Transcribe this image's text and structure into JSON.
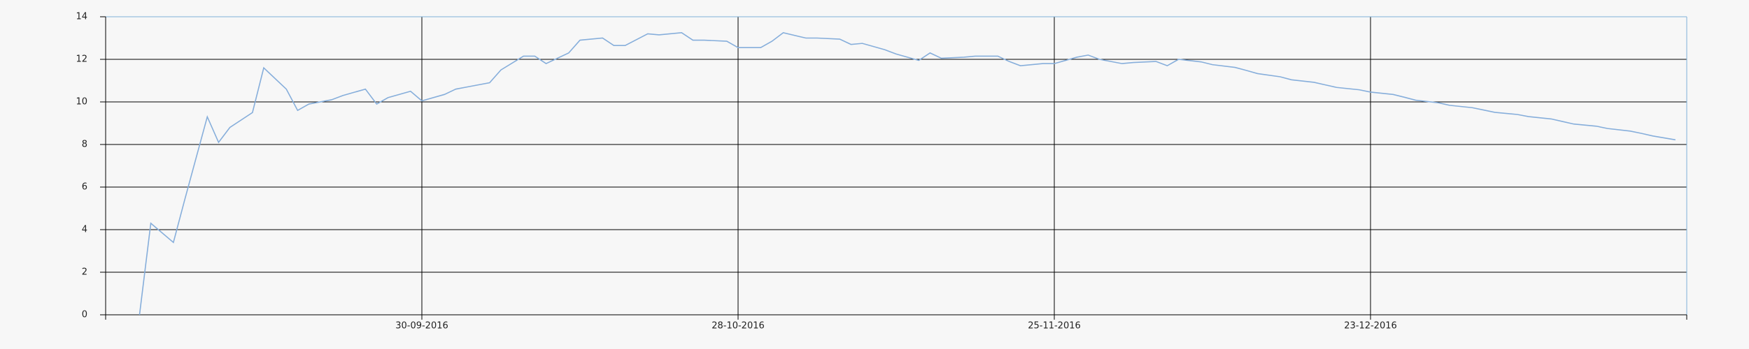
{
  "chart_data": {
    "type": "line",
    "x": [
      "2016-09-05",
      "2016-09-06",
      "2016-09-08",
      "2016-09-09",
      "2016-09-11",
      "2016-09-12",
      "2016-09-13",
      "2016-09-15",
      "2016-09-16",
      "2016-09-18",
      "2016-09-19",
      "2016-09-20",
      "2016-09-22",
      "2016-09-23",
      "2016-09-25",
      "2016-09-26",
      "2016-09-27",
      "2016-09-29",
      "2016-09-30",
      "2016-10-02",
      "2016-10-03",
      "2016-10-04",
      "2016-10-06",
      "2016-10-07",
      "2016-10-09",
      "2016-10-10",
      "2016-10-11",
      "2016-10-13",
      "2016-10-14",
      "2016-10-16",
      "2016-10-17",
      "2016-10-18",
      "2016-10-20",
      "2016-10-21",
      "2016-10-23",
      "2016-10-24",
      "2016-10-25",
      "2016-10-27",
      "2016-10-28",
      "2016-10-30",
      "2016-10-31",
      "2016-11-01",
      "2016-11-03",
      "2016-11-04",
      "2016-11-06",
      "2016-11-07",
      "2016-11-08",
      "2016-11-10",
      "2016-11-11",
      "2016-11-13",
      "2016-11-14",
      "2016-11-15",
      "2016-11-17",
      "2016-11-18",
      "2016-11-20",
      "2016-11-21",
      "2016-11-22",
      "2016-11-24",
      "2016-11-25",
      "2016-11-27",
      "2016-11-28",
      "2016-11-29",
      "2016-12-01",
      "2016-12-02",
      "2016-12-04",
      "2016-12-05",
      "2016-12-06",
      "2016-12-08",
      "2016-12-09",
      "2016-12-11",
      "2016-12-12",
      "2016-12-13",
      "2016-12-15",
      "2016-12-16",
      "2016-12-18",
      "2016-12-19",
      "2016-12-20",
      "2016-12-22",
      "2016-12-23",
      "2016-12-25",
      "2016-12-26",
      "2016-12-27",
      "2016-12-29",
      "2016-12-30",
      "2017-01-01",
      "2017-01-02",
      "2017-01-03",
      "2017-01-05",
      "2017-01-06",
      "2017-01-08",
      "2017-01-09",
      "2017-01-10",
      "2017-01-12",
      "2017-01-13",
      "2017-01-15",
      "2017-01-16",
      "2017-01-17",
      "2017-01-19"
    ],
    "series": [
      {
        "color": "#86aedb",
        "values": [
          0,
          4.3,
          3.4,
          5.4,
          9.3,
          8.1,
          8.8,
          9.5,
          11.6,
          10.6,
          9.6,
          9.9,
          10.1,
          10.3,
          10.6,
          9.9,
          10.2,
          10.5,
          10.05,
          10.35,
          10.6,
          10.7,
          10.9,
          11.5,
          12.15,
          12.15,
          11.8,
          12.3,
          12.9,
          13.0,
          12.65,
          12.65,
          13.2,
          13.15,
          13.25,
          12.9,
          12.9,
          12.85,
          12.55,
          12.55,
          12.85,
          13.25,
          13.0,
          13.0,
          12.95,
          12.7,
          12.75,
          12.45,
          12.25,
          11.95,
          12.3,
          12.05,
          12.1,
          12.15,
          12.15,
          11.9,
          11.7,
          11.8,
          11.8,
          12.1,
          12.2,
          12.0,
          11.8,
          11.85,
          11.9,
          11.7,
          12.0,
          11.88,
          11.75,
          11.62,
          11.48,
          11.33,
          11.18,
          11.04,
          10.92,
          10.8,
          10.68,
          10.57,
          10.46,
          10.35,
          10.22,
          10.08,
          9.96,
          9.84,
          9.73,
          9.62,
          9.51,
          9.41,
          9.31,
          9.2,
          9.08,
          8.96,
          8.86,
          8.75,
          8.63,
          8.52,
          8.4,
          8.22
        ]
      }
    ],
    "xlim": [
      "2016-09-02",
      "2017-01-20"
    ],
    "xticks": [
      {
        "value": "2016-09-30",
        "label": "30-09-2016"
      },
      {
        "value": "2016-10-28",
        "label": "28-10-2016"
      },
      {
        "value": "2016-11-25",
        "label": "25-11-2016"
      },
      {
        "value": "2016-12-23",
        "label": "23-12-2016"
      }
    ],
    "ylim": [
      0,
      14
    ],
    "yticks": [
      0,
      2,
      4,
      6,
      8,
      10,
      12,
      14
    ],
    "grid": true
  }
}
